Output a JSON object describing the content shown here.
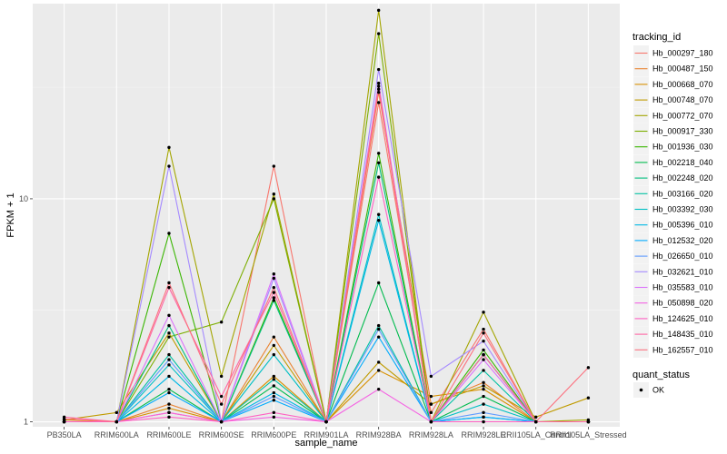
{
  "chart_data": {
    "type": "line",
    "xlabel": "sample_name",
    "ylabel": "FPKM + 1",
    "y_scale": "log10",
    "ylim": [
      0.95,
      75
    ],
    "y_ticks": [
      {
        "value": 1,
        "label": "1"
      },
      {
        "value": 10,
        "label": "10"
      }
    ],
    "categories": [
      "PB350LA",
      "RRIM600LA",
      "RRIM600LE",
      "RRIM600SE",
      "RRIM600PE",
      "RRIM901LA",
      "RRIM928BA",
      "RRIM928LA",
      "RRIM928LE",
      "RRII105LA_Control",
      "RRII105LA_Stressed"
    ],
    "legend": {
      "title": "tracking_id",
      "position": "right"
    },
    "shape_legend": {
      "title": "quant_status",
      "items": [
        "OK"
      ]
    },
    "series": [
      {
        "name": "Hb_000297_180",
        "color": "#F8766D",
        "values": [
          1.0,
          1.0,
          1.1,
          1.0,
          14.0,
          1.0,
          27.0,
          1.1,
          2.6,
          1.0,
          1.0
        ]
      },
      {
        "name": "Hb_000487_150",
        "color": "#EA8331",
        "values": [
          1.0,
          1.0,
          1.2,
          1.0,
          2.4,
          1.0,
          30.0,
          1.2,
          1.5,
          1.0,
          1.0
        ]
      },
      {
        "name": "Hb_000668_070",
        "color": "#D89000",
        "values": [
          1.02,
          1.0,
          1.15,
          1.0,
          1.6,
          1.0,
          1.7,
          1.3,
          1.4,
          1.0,
          1.0
        ]
      },
      {
        "name": "Hb_000748_070",
        "color": "#C09B00",
        "values": [
          1.02,
          1.1,
          2.5,
          1.0,
          2.2,
          1.0,
          1.85,
          1.2,
          1.45,
          1.05,
          1.28
        ]
      },
      {
        "name": "Hb_000772_070",
        "color": "#A3A500",
        "values": [
          1.0,
          1.0,
          17.0,
          1.6,
          10.5,
          1.0,
          70.0,
          1.0,
          3.1,
          1.0,
          1.02
        ]
      },
      {
        "name": "Hb_000917_330",
        "color": "#7CAE00",
        "values": [
          1.0,
          1.0,
          2.4,
          2.8,
          10.0,
          1.0,
          55.0,
          1.0,
          2.0,
          1.0,
          1.0
        ]
      },
      {
        "name": "Hb_001936_030",
        "color": "#39B600",
        "values": [
          1.0,
          1.0,
          7.0,
          1.0,
          3.6,
          1.0,
          16.0,
          1.0,
          2.1,
          1.0,
          1.0
        ]
      },
      {
        "name": "Hb_002218_040",
        "color": "#00BB4E",
        "values": [
          1.0,
          1.0,
          1.4,
          1.0,
          1.45,
          1.0,
          4.2,
          1.0,
          1.3,
          1.0,
          1.0
        ]
      },
      {
        "name": "Hb_002248_020",
        "color": "#00BF7D",
        "values": [
          1.0,
          1.0,
          2.7,
          1.0,
          3.5,
          1.0,
          14.5,
          1.0,
          2.0,
          1.0,
          1.0
        ]
      },
      {
        "name": "Hb_003166_020",
        "color": "#00C1A3",
        "values": [
          1.0,
          1.0,
          2.0,
          1.0,
          1.55,
          1.0,
          2.7,
          1.0,
          1.7,
          1.0,
          1.0
        ]
      },
      {
        "name": "Hb_003392_030",
        "color": "#00BFC4",
        "values": [
          1.0,
          1.0,
          1.8,
          1.0,
          2.0,
          1.0,
          8.5,
          1.0,
          1.2,
          1.0,
          1.0
        ]
      },
      {
        "name": "Hb_005396_010",
        "color": "#00B8E5",
        "values": [
          1.0,
          1.0,
          1.6,
          1.0,
          1.35,
          1.0,
          8.0,
          1.0,
          1.05,
          1.0,
          1.0
        ]
      },
      {
        "name": "Hb_012532_020",
        "color": "#00ABFD",
        "values": [
          1.0,
          1.0,
          1.35,
          1.0,
          1.25,
          1.0,
          2.4,
          1.0,
          1.05,
          1.0,
          1.0
        ]
      },
      {
        "name": "Hb_026650_010",
        "color": "#619CFF",
        "values": [
          1.0,
          1.0,
          1.9,
          1.0,
          1.3,
          1.0,
          2.6,
          1.0,
          1.1,
          1.0,
          1.0
        ]
      },
      {
        "name": "Hb_032621_010",
        "color": "#A58AFF",
        "values": [
          1.0,
          1.0,
          14.0,
          1.0,
          4.4,
          1.0,
          38.0,
          1.6,
          2.3,
          1.0,
          1.0
        ]
      },
      {
        "name": "Hb_035583_010",
        "color": "#DB72FB",
        "values": [
          1.0,
          1.0,
          3.0,
          1.0,
          4.6,
          1.0,
          33.0,
          1.0,
          1.9,
          1.0,
          1.0
        ]
      },
      {
        "name": "Hb_050898_020",
        "color": "#F564E3",
        "values": [
          1.0,
          1.0,
          1.1,
          1.0,
          1.05,
          1.0,
          1.4,
          1.0,
          1.0,
          1.0,
          1.0
        ]
      },
      {
        "name": "Hb_124625_010",
        "color": "#FF61C3",
        "values": [
          1.0,
          1.0,
          1.05,
          1.0,
          1.1,
          1.0,
          12.5,
          1.0,
          1.0,
          1.0,
          1.0
        ]
      },
      {
        "name": "Hb_148435_010",
        "color": "#FF67A4",
        "values": [
          1.05,
          1.0,
          4.0,
          1.3,
          3.8,
          1.0,
          32.0,
          1.0,
          2.0,
          1.0,
          1.0
        ]
      },
      {
        "name": "Hb_162557_010",
        "color": "#FC717F",
        "values": [
          1.03,
          1.0,
          4.2,
          1.2,
          4.0,
          1.0,
          31.0,
          1.0,
          2.5,
          1.0,
          1.75
        ]
      }
    ]
  }
}
